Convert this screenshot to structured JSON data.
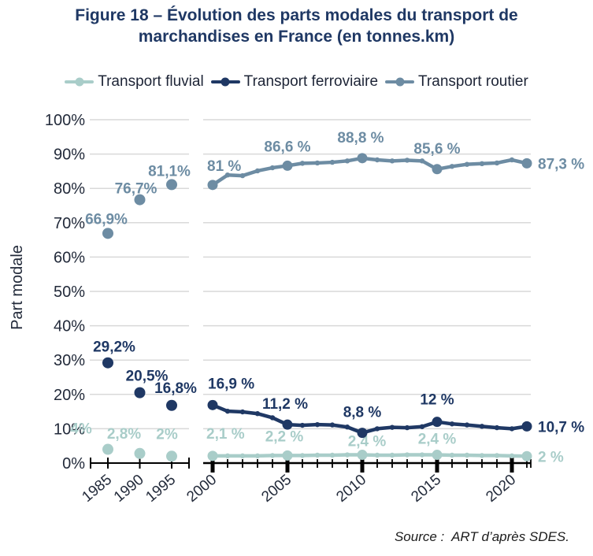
{
  "title_lines": [
    "Figure 18 – Évolution des parts modales du transport de",
    "marchandises en France (en tonnes.km)"
  ],
  "source": "Source :  ART d’après SDES.",
  "colors": {
    "title": "#1f3864",
    "grid": "#d9d9d9",
    "axis": "#000000",
    "tick_text": "#222a3a"
  },
  "chart_data": {
    "type": "line",
    "title": "Figure 18 – Évolution des parts modales du transport de marchandises en France (en tonnes.km)",
    "ylabel": "Part modale",
    "ylim": [
      0,
      100
    ],
    "ytick_step": 10,
    "ytick_suffix": "%",
    "grid": "horizontal",
    "legend_position": "top",
    "x_tick_years": [
      1985,
      1990,
      1995,
      2000,
      2005,
      2010,
      2015,
      2020
    ],
    "axis_break_between": [
      1995,
      2000
    ],
    "x": [
      2000,
      2001,
      2002,
      2003,
      2004,
      2005,
      2006,
      2007,
      2008,
      2009,
      2010,
      2011,
      2012,
      2013,
      2014,
      2015,
      2016,
      2017,
      2018,
      2019,
      2020,
      2021
    ],
    "series": [
      {
        "id": "fluvial",
        "name": "Transport fluvial",
        "color": "#a9cdc9",
        "early": {
          "years": [
            1985,
            1990,
            1995
          ],
          "values": [
            4,
            2.8,
            2
          ]
        },
        "values": [
          2.1,
          2.1,
          2.1,
          2.1,
          2.2,
          2.2,
          2.2,
          2.3,
          2.3,
          2.4,
          2.4,
          2.3,
          2.3,
          2.4,
          2.4,
          2.4,
          2.3,
          2.3,
          2.2,
          2.2,
          2.1,
          2.0
        ],
        "anchor_years": [
          2000,
          2005,
          2010,
          2015,
          2021
        ],
        "annotations": [
          {
            "year": 1985,
            "text": "4%",
            "dx": -34,
            "dy": -20
          },
          {
            "year": 1990,
            "text": "2,8%",
            "dx": -20,
            "dy": -19
          },
          {
            "year": 1995,
            "text": "2%",
            "dx": -6,
            "dy": -22
          },
          {
            "year": 2000,
            "text": "2,1 %",
            "dx": -8,
            "dy": -22,
            "anchor": "start"
          },
          {
            "year": 2005,
            "text": "2,2 %",
            "dx": -4,
            "dy": -18
          },
          {
            "year": 2010,
            "text": "2,4 %",
            "dx": 6,
            "dy": -11
          },
          {
            "year": 2015,
            "text": "2,4 %",
            "dx": 0,
            "dy": -14
          },
          {
            "year": 2021,
            "text": "2 %",
            "dx": 14,
            "dy": 7,
            "anchor": "start"
          }
        ]
      },
      {
        "id": "ferroviaire",
        "name": "Transport ferroviaire",
        "color": "#1f3864",
        "early": {
          "years": [
            1985,
            1990,
            1995
          ],
          "values": [
            29.2,
            20.5,
            16.8
          ]
        },
        "values": [
          16.9,
          15.1,
          14.9,
          14.4,
          13.2,
          11.2,
          11.0,
          11.2,
          11.1,
          10.5,
          8.8,
          10.0,
          10.4,
          10.3,
          10.6,
          12.0,
          11.4,
          11.1,
          10.7,
          10.3,
          10.0,
          10.7
        ],
        "anchor_years": [
          2000,
          2005,
          2010,
          2015,
          2021
        ],
        "annotations": [
          {
            "year": 1985,
            "text": "29,2%",
            "dx": 8,
            "dy": -14
          },
          {
            "year": 1990,
            "text": "20,5%",
            "dx": 9,
            "dy": -15
          },
          {
            "year": 1995,
            "text": "16,8%",
            "dx": 5,
            "dy": -16
          },
          {
            "year": 2000,
            "text": "16,9 %",
            "dx": -6,
            "dy": -21,
            "anchor": "start"
          },
          {
            "year": 2005,
            "text": "11,2 %",
            "dx": -3,
            "dy": -20
          },
          {
            "year": 2010,
            "text": "8,8 %",
            "dx": 0,
            "dy": -20
          },
          {
            "year": 2015,
            "text": "12 %",
            "dx": 0,
            "dy": -22
          },
          {
            "year": 2021,
            "text": "10,7 %",
            "dx": 14,
            "dy": 7,
            "anchor": "start"
          }
        ]
      },
      {
        "id": "routier",
        "name": "Transport routier",
        "color": "#6d8ca3",
        "early": {
          "years": [
            1985,
            1990,
            1995
          ],
          "values": [
            66.9,
            76.7,
            81.1
          ]
        },
        "values": [
          81.0,
          83.9,
          83.7,
          85.1,
          86.0,
          86.6,
          87.3,
          87.4,
          87.6,
          88.0,
          88.8,
          88.3,
          88.0,
          88.2,
          88.0,
          85.6,
          86.4,
          87.0,
          87.2,
          87.4,
          88.3,
          87.3
        ],
        "anchor_years": [
          2000,
          2005,
          2010,
          2015,
          2021
        ],
        "annotations": [
          {
            "year": 1985,
            "text": "66,9%",
            "dx": -2,
            "dy": -12
          },
          {
            "year": 1990,
            "text": "76,7%",
            "dx": -5,
            "dy": -8
          },
          {
            "year": 1995,
            "text": "81,1%",
            "dx": -3,
            "dy": -11
          },
          {
            "year": 2000,
            "text": "81 %",
            "dx": -7,
            "dy": -18,
            "anchor": "start"
          },
          {
            "year": 2005,
            "text": "86,6 %",
            "dx": 0,
            "dy": -18
          },
          {
            "year": 2010,
            "text": "88,8 %",
            "dx": -2,
            "dy": -20
          },
          {
            "year": 2015,
            "text": "85,6 %",
            "dx": 0,
            "dy": -20
          },
          {
            "year": 2021,
            "text": "87,3 %",
            "dx": 14,
            "dy": 7,
            "anchor": "start"
          }
        ]
      }
    ]
  }
}
